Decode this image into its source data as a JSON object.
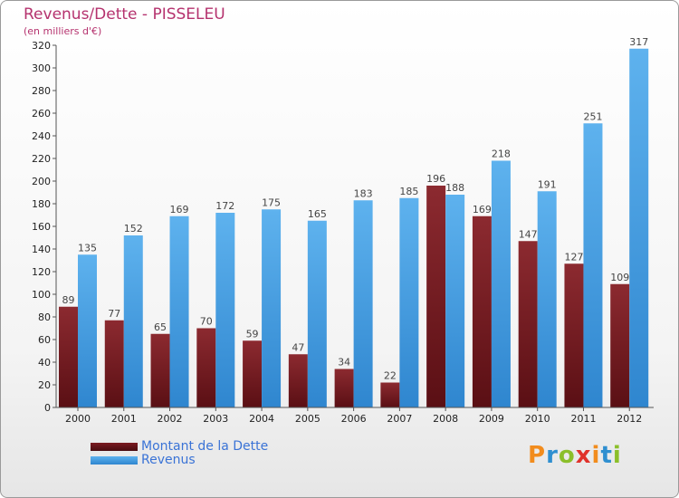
{
  "title": "Revenus/Dette - PISSELEU",
  "subtitle": "(en milliers d'€)",
  "colors": {
    "dette": "#7b1a20",
    "revenus": "#4aa3e6",
    "title": "#b5326e",
    "legend_text": "#3a73d6"
  },
  "legend": {
    "dette": "Montant de la Dette",
    "revenus": "Revenus"
  },
  "logo": {
    "text": "Proxiti",
    "letters": [
      "P",
      "r",
      "o",
      "x",
      "i",
      "t",
      "i"
    ],
    "colors": [
      "#f28c1d",
      "#2f8fd0",
      "#8bbf2a",
      "#e0322b",
      "#f28c1d",
      "#2f8fd0",
      "#8bbf2a"
    ]
  },
  "chart_data": {
    "type": "bar",
    "categories": [
      "2000",
      "2001",
      "2002",
      "2003",
      "2004",
      "2005",
      "2006",
      "2007",
      "2008",
      "2009",
      "2010",
      "2011",
      "2012"
    ],
    "series": [
      {
        "name": "Montant de la Dette",
        "values": [
          89,
          77,
          65,
          70,
          59,
          47,
          34,
          22,
          196,
          169,
          147,
          127,
          109
        ]
      },
      {
        "name": "Revenus",
        "values": [
          135,
          152,
          169,
          172,
          175,
          165,
          183,
          185,
          188,
          218,
          191,
          251,
          317
        ]
      }
    ],
    "ylim": [
      0,
      320
    ],
    "yticks": [
      0,
      20,
      40,
      60,
      80,
      100,
      120,
      140,
      160,
      180,
      200,
      220,
      240,
      260,
      280,
      300,
      320
    ],
    "grid": false,
    "legend_position": "bottom-left"
  }
}
